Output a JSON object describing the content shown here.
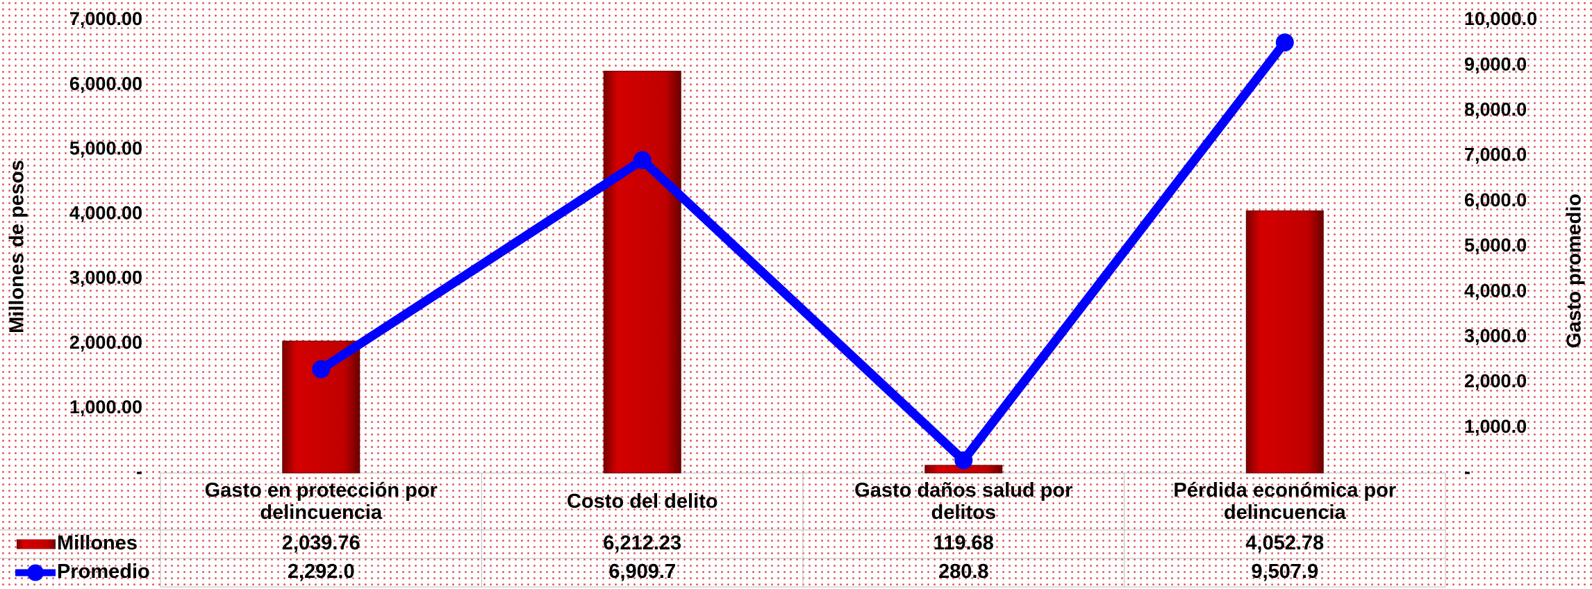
{
  "chart_data": {
    "type": "bar",
    "categories": [
      "Gasto en protección por delincuencia",
      "Costo del delito",
      "Gasto daños salud por delitos",
      "Pérdida económica por delincuencia"
    ],
    "series": [
      {
        "name": "Millones",
        "type": "bar",
        "color": "#c00000",
        "values": [
          2039.76,
          6212.23,
          119.68,
          4052.78
        ],
        "value_labels": [
          "2,039.76",
          "6,212.23",
          "119.68",
          "4,052.78"
        ]
      },
      {
        "name": "Promedio",
        "type": "line",
        "axis": "y2",
        "color": "#0000ff",
        "values": [
          2292.0,
          6909.7,
          280.8,
          9507.9
        ],
        "value_labels": [
          "2,292.0",
          "6,909.7",
          "280.8",
          "9,507.9"
        ]
      }
    ],
    "ylabel": "Millones de pesos",
    "y2label": "Gasto promedio",
    "ylim": [
      0,
      7000
    ],
    "yticks": [
      {
        "value": 0,
        "label": "-"
      },
      {
        "value": 1000,
        "label": "1,000.00"
      },
      {
        "value": 2000,
        "label": "2,000.00"
      },
      {
        "value": 3000,
        "label": "3,000.00"
      },
      {
        "value": 4000,
        "label": "4,000.00"
      },
      {
        "value": 5000,
        "label": "5,000.00"
      },
      {
        "value": 6000,
        "label": "6,000.00"
      },
      {
        "value": 7000,
        "label": "7,000.00"
      }
    ],
    "y2lim": [
      0,
      10000
    ],
    "y2ticks": [
      {
        "value": 0,
        "label": "-"
      },
      {
        "value": 1000,
        "label": "1,000.0"
      },
      {
        "value": 2000,
        "label": "2,000.0"
      },
      {
        "value": 3000,
        "label": "3,000.0"
      },
      {
        "value": 4000,
        "label": "4,000.0"
      },
      {
        "value": 5000,
        "label": "5,000.0"
      },
      {
        "value": 6000,
        "label": "6,000.0"
      },
      {
        "value": 7000,
        "label": "7,000.0"
      },
      {
        "value": 8000,
        "label": "8,000.0"
      },
      {
        "value": 9000,
        "label": "9,000.0"
      },
      {
        "value": 10000,
        "label": "10,000.0"
      }
    ]
  }
}
